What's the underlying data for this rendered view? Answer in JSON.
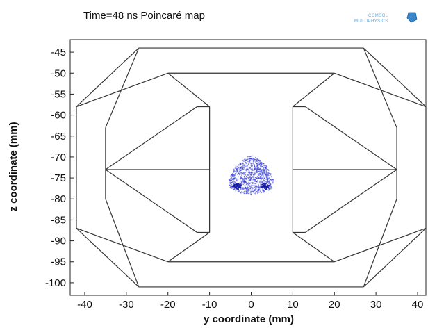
{
  "chart_data": {
    "type": "scatter",
    "title": "Time=48 ns  Poincaré map",
    "xlabel": "y coordinate (mm)",
    "ylabel": "z coordinate (mm)",
    "xlim": [
      -43.5,
      42
    ],
    "ylim": [
      -103,
      -42
    ],
    "xticks": [
      -40,
      -30,
      -20,
      -10,
      0,
      10,
      20,
      30,
      40
    ],
    "yticks": [
      -45,
      -50,
      -55,
      -60,
      -65,
      -70,
      -75,
      -80,
      -85,
      -90,
      -95,
      -100
    ],
    "grid": false,
    "geometry_color": "#333333",
    "point_color": "#2b34d6",
    "geometry_segments": [
      [
        [
          -27,
          -44
        ],
        [
          27,
          -44
        ]
      ],
      [
        [
          -20,
          -50
        ],
        [
          20,
          -50
        ]
      ],
      [
        [
          -20,
          -95
        ],
        [
          20,
          -95
        ]
      ],
      [
        [
          -27,
          -101
        ],
        [
          27,
          -101
        ]
      ],
      [
        [
          -27,
          -44
        ],
        [
          -42,
          -58
        ]
      ],
      [
        [
          -42,
          -58
        ],
        [
          -42,
          -87
        ]
      ],
      [
        [
          -42,
          -87
        ],
        [
          -27,
          -101
        ]
      ],
      [
        [
          -20,
          -50
        ],
        [
          -42,
          -58
        ]
      ],
      [
        [
          -20,
          -95
        ],
        [
          -42,
          -87
        ]
      ],
      [
        [
          -20,
          -50
        ],
        [
          -10,
          -58
        ]
      ],
      [
        [
          -20,
          -95
        ],
        [
          -10,
          -88
        ]
      ],
      [
        [
          -13,
          -58
        ],
        [
          -10,
          -58
        ]
      ],
      [
        [
          -10,
          -58
        ],
        [
          -10,
          -88
        ]
      ],
      [
        [
          -13,
          -88
        ],
        [
          -10,
          -88
        ]
      ],
      [
        [
          -13,
          -58
        ],
        [
          -35,
          -73
        ]
      ],
      [
        [
          -13,
          -88
        ],
        [
          -35,
          -73
        ]
      ],
      [
        [
          -35,
          -63
        ],
        [
          -35,
          -80
        ]
      ],
      [
        [
          -27,
          -44
        ],
        [
          -35,
          -63
        ]
      ],
      [
        [
          -27,
          -101
        ],
        [
          -35,
          -80
        ]
      ],
      [
        [
          -35,
          -73
        ],
        [
          -10,
          -73
        ]
      ],
      [
        [
          27,
          -44
        ],
        [
          42,
          -58
        ]
      ],
      [
        [
          42,
          -58
        ],
        [
          42,
          -87
        ]
      ],
      [
        [
          42,
          -87
        ],
        [
          27,
          -101
        ]
      ],
      [
        [
          20,
          -50
        ],
        [
          42,
          -58
        ]
      ],
      [
        [
          20,
          -95
        ],
        [
          42,
          -87
        ]
      ],
      [
        [
          20,
          -50
        ],
        [
          10,
          -58
        ]
      ],
      [
        [
          20,
          -95
        ],
        [
          10,
          -88
        ]
      ],
      [
        [
          13,
          -58
        ],
        [
          10,
          -58
        ]
      ],
      [
        [
          10,
          -58
        ],
        [
          10,
          -88
        ]
      ],
      [
        [
          13,
          -88
        ],
        [
          10,
          -88
        ]
      ],
      [
        [
          13,
          -58
        ],
        [
          35,
          -73
        ]
      ],
      [
        [
          13,
          -88
        ],
        [
          35,
          -73
        ]
      ],
      [
        [
          35,
          -63
        ],
        [
          35,
          -80
        ]
      ],
      [
        [
          27,
          -44
        ],
        [
          35,
          -63
        ]
      ],
      [
        [
          27,
          -101
        ],
        [
          35,
          -80
        ]
      ],
      [
        [
          35,
          -73
        ],
        [
          10,
          -73
        ]
      ]
    ],
    "particle_cloud": {
      "outline": [
        [
          0,
          -69.5
        ],
        [
          2,
          -70.5
        ],
        [
          4,
          -72.5
        ],
        [
          5.5,
          -75.5
        ],
        [
          5,
          -77.5
        ],
        [
          3,
          -78.5
        ],
        [
          0,
          -79
        ],
        [
          -3,
          -78.5
        ],
        [
          -5,
          -77.5
        ],
        [
          -5.5,
          -75.5
        ],
        [
          -4,
          -72.5
        ],
        [
          -2,
          -70.5
        ]
      ],
      "dense_spots": [
        [
          -3.5,
          -77
        ],
        [
          3.5,
          -77
        ]
      ]
    }
  },
  "logo": {
    "line1": "COMSOL",
    "line2": "MULTIPHYSICS"
  }
}
